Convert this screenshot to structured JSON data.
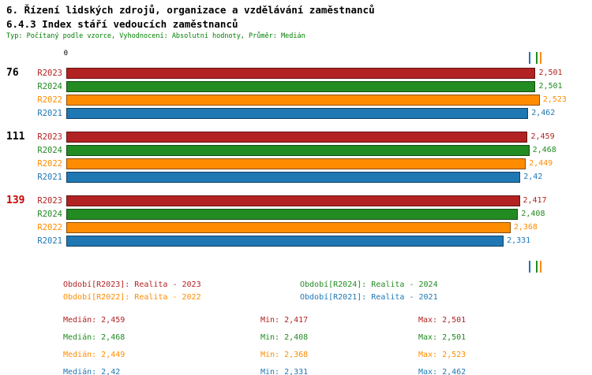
{
  "header": {
    "title_line1": "6. Řízení lidských zdrojů, organizace a vzdělávání zaměstnanců",
    "title_line2": "6.4.3 Index stáří vedoucích zaměstnanců",
    "subtitle": "Typ: Počítaný podle vzorce, Vyhodnocení: Absolutní hodnoty, Průměr: Medián"
  },
  "chart_data": {
    "type": "bar",
    "orientation": "horizontal",
    "title": "6.4.3 Index stáří vedoucích zaměstnanců",
    "xlabel": "",
    "ylabel": "",
    "xlim": [
      0,
      2.6
    ],
    "grid": false,
    "axis_origin_label": "0",
    "categories": [
      "76",
      "111",
      "139"
    ],
    "category_colors": [
      "#000000",
      "#000000",
      "#cc0000"
    ],
    "series": [
      {
        "name": "R2023",
        "color": "#b22222",
        "values": [
          2.501,
          2.459,
          2.417
        ],
        "value_labels": [
          "2,501",
          "2,459",
          "2,417"
        ]
      },
      {
        "name": "R2024",
        "color": "#228b22",
        "values": [
          2.501,
          2.468,
          2.408
        ],
        "value_labels": [
          "2,501",
          "2,468",
          "2,408"
        ]
      },
      {
        "name": "R2022",
        "color": "#ff8c00",
        "values": [
          2.523,
          2.449,
          2.368
        ],
        "value_labels": [
          "2,523",
          "2,449",
          "2,368"
        ]
      },
      {
        "name": "R2021",
        "color": "#1f77b4",
        "values": [
          2.462,
          2.42,
          2.331
        ],
        "value_labels": [
          "2,462",
          "2,42",
          "2,331"
        ]
      }
    ],
    "edge_markers": [
      {
        "color": "#b22222",
        "value": 2.501
      },
      {
        "color": "#228b22",
        "value": 2.501
      },
      {
        "color": "#ff8c00",
        "value": 2.523
      },
      {
        "color": "#1f77b4",
        "value": 2.462
      }
    ],
    "legend": [
      {
        "text": "Období[R2023]: Realita - 2023",
        "color": "#b22222"
      },
      {
        "text": "Období[R2024]: Realita - 2024",
        "color": "#228b22"
      },
      {
        "text": "Období[R2022]: Realita - 2022",
        "color": "#ff8c00"
      },
      {
        "text": "Období[R2021]: Realita - 2021",
        "color": "#1f77b4"
      }
    ],
    "stats": [
      {
        "color": "#b22222",
        "median": "Medián: 2,459",
        "min": "Min: 2,417",
        "max": "Max: 2,501"
      },
      {
        "color": "#228b22",
        "median": "Medián: 2,468",
        "min": "Min: 2,408",
        "max": "Max: 2,501"
      },
      {
        "color": "#ff8c00",
        "median": "Medián: 2,449",
        "min": "Min: 2,368",
        "max": "Max: 2,523"
      },
      {
        "color": "#1f77b4",
        "median": "Medián: 2,42",
        "min": "Min: 2,331",
        "max": "Max: 2,462"
      }
    ]
  }
}
